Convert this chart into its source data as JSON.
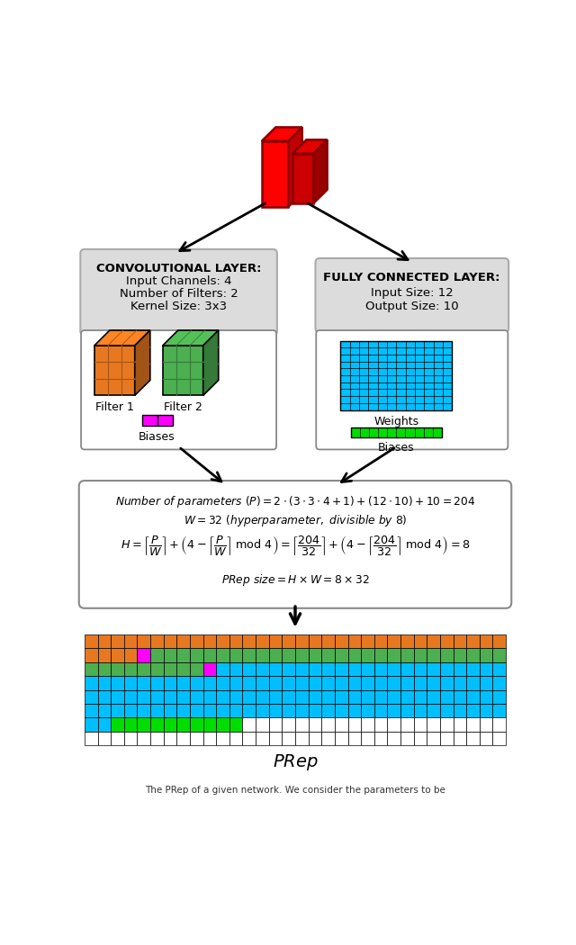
{
  "bg_color": "#ffffff",
  "box_bg": "#DCDCDC",
  "orange_color": "#E87820",
  "green_color": "#4CAF50",
  "magenta_color": "#FF00FF",
  "cyan_color": "#00BFFF",
  "bright_green_color": "#00DD00",
  "white_color": "#FFFFFF",
  "red_color": "#FF0000",
  "red_dark": "#AA0000",
  "conv_bold": "CONVOLUTIONAL LAYER:",
  "conv_line1": "Input Channels: 4",
  "conv_line2": "Number of Filters: 2",
  "conv_line3": "Kernel Size: 3x3",
  "fc_bold": "FULLY CONNECTED LAYER:",
  "fc_line1": "Input Size: 12",
  "fc_line2": "Output Size: 10",
  "filter1_label": "Filter 1",
  "filter2_label": "Filter 2",
  "biases_label": "Biases",
  "weights_label": "Weights",
  "prep_label": "PRep"
}
